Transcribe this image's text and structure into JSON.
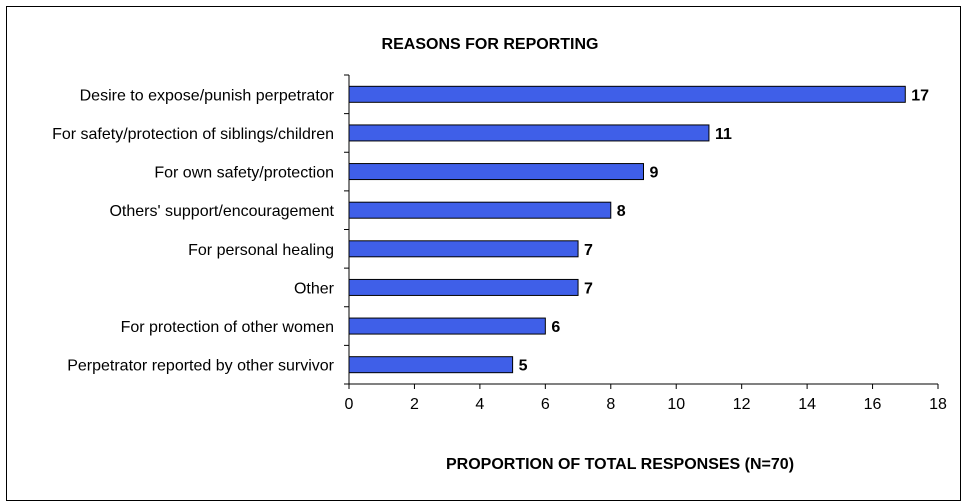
{
  "chart_data": {
    "type": "bar",
    "orientation": "horizontal",
    "title": "REASONS FOR REPORTING",
    "xlabel": "PROPORTION OF TOTAL RESPONSES (N=70)",
    "ylabel": "",
    "categories": [
      "Desire to expose/punish perpetrator",
      "For safety/protection of siblings/children",
      "For own safety/protection",
      "Others' support/encouragement",
      "For personal healing",
      "Other",
      "For protection of other women",
      "Perpetrator reported by other survivor"
    ],
    "values": [
      17,
      11,
      9,
      8,
      7,
      7,
      6,
      5
    ],
    "xlim": [
      0,
      18
    ],
    "xticks": [
      "0",
      "2",
      "4",
      "6",
      "8",
      "10",
      "12",
      "14",
      "16",
      "18"
    ],
    "grid": false,
    "legend": "none",
    "bar_color": "#3F5FE8"
  }
}
